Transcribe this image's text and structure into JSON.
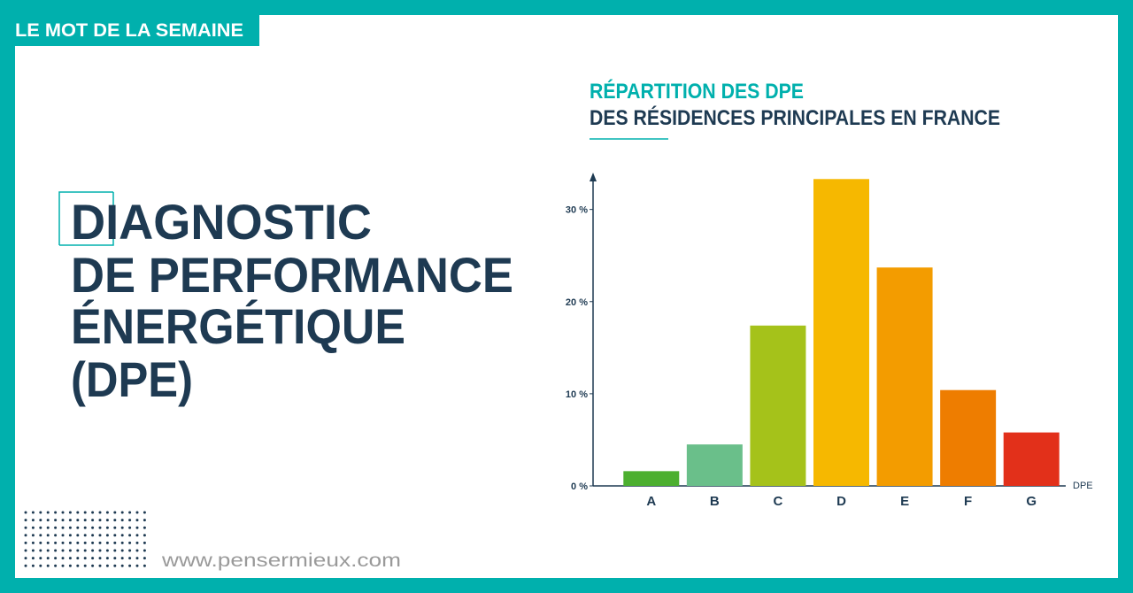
{
  "header": {
    "tag": "LE MOT DE LA SEMAINE"
  },
  "headline": [
    "DIAGNOSTIC",
    "DE PERFORMANCE",
    "ÉNERGÉTIQUE",
    "(DPE)"
  ],
  "footer": {
    "website": "www.pensermieux.com"
  },
  "chart_data": {
    "type": "bar",
    "title": "RÉPARTITION DES DPE",
    "subtitle": "DES RÉSIDENCES PRINCIPALES EN FRANCE",
    "x_label": "DPE",
    "categories": [
      "A",
      "B",
      "C",
      "D",
      "E",
      "F",
      "G"
    ],
    "values": [
      1.6,
      4.5,
      17.4,
      33.3,
      23.7,
      10.4,
      5.8
    ],
    "colors": [
      "#4caf2f",
      "#6abf8a",
      "#a5c21a",
      "#f6b800",
      "#f39c00",
      "#ee7d00",
      "#e2301a"
    ],
    "ylim": [
      0,
      34
    ],
    "yticks": [
      {
        "value": 0,
        "label": "0 %"
      },
      {
        "value": 10,
        "label": "10 %"
      },
      {
        "value": 20,
        "label": "20 %"
      },
      {
        "value": 30,
        "label": "30 %"
      }
    ],
    "grid": false
  }
}
